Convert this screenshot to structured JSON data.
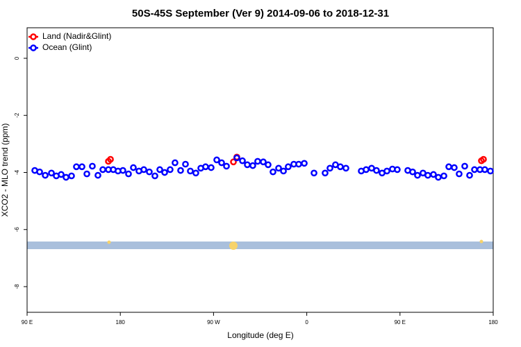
{
  "chart_data": {
    "type": "scatter",
    "title": "50S-45S September (Ver 9)   2014-09-06 to 2018-12-31",
    "x_label": "Longitude (deg E)",
    "y_label": "XCO2 - MLO trend (ppm)",
    "xlim": [
      90,
      540
    ],
    "xticks": [
      {
        "value": 90,
        "label": "90 E"
      },
      180,
      {
        "value": 270,
        "label": "90 W"
      },
      {
        "value": 360,
        "label": "0"
      },
      {
        "value": 450,
        "label": "90 E"
      },
      {
        "value": 540,
        "label": "180"
      }
    ],
    "ylim": [
      -8.9,
      1.07
    ],
    "yticks": [
      0,
      -2,
      -4,
      -6,
      -8
    ],
    "legend": "top-left",
    "series": [
      {
        "name": "Land (Nadir&Glint)",
        "color": "#ff0000",
        "x": [
          168.5,
          170.5,
          289.2,
          292.5,
          528.6,
          530.6
        ],
        "values": [
          -3.61,
          -3.54,
          -3.63,
          -3.46,
          -3.59,
          -3.54
        ]
      },
      {
        "name": "Ocean (Glint)",
        "color": "#0000ff",
        "x": [
          97.4,
          102.1,
          107.5,
          113.5,
          118.2,
          122.9,
          127.6,
          132.9,
          137.6,
          143.0,
          147.7,
          153.0,
          158.4,
          163.1,
          168.5,
          173.2,
          177.8,
          182.5,
          187.9,
          192.6,
          198.0,
          202.7,
          208.0,
          213.4,
          218.1,
          222.8,
          228.1,
          232.8,
          238.2,
          242.9,
          247.6,
          252.9,
          257.7,
          262.3,
          267.7,
          273.1,
          277.8,
          282.5,
          292.5,
          297.9,
          302.6,
          307.9,
          312.6,
          318.0,
          322.7,
          327.4,
          332.8,
          337.5,
          342.1,
          347.5,
          352.2,
          357.6,
          367.0,
          377.7,
          382.4,
          387.7,
          392.4,
          397.8,
          412.6,
          417.3,
          422.6,
          427.3,
          432.7,
          437.4,
          442.7,
          447.4,
          457.5,
          462.2,
          466.9,
          472.2,
          476.9,
          482.3,
          487.0,
          492.4,
          497.1,
          502.4,
          507.1,
          512.5,
          517.2,
          521.9,
          527.2,
          531.9,
          537.3
        ],
        "values": [
          -3.93,
          -3.98,
          -4.1,
          -4.02,
          -4.12,
          -4.07,
          -4.17,
          -4.12,
          -3.8,
          -3.8,
          -4.05,
          -3.78,
          -4.1,
          -3.9,
          -3.9,
          -3.9,
          -3.95,
          -3.93,
          -4.05,
          -3.83,
          -3.95,
          -3.9,
          -3.98,
          -4.12,
          -3.9,
          -4.0,
          -3.9,
          -3.66,
          -3.93,
          -3.71,
          -3.95,
          -4.02,
          -3.85,
          -3.8,
          -3.83,
          -3.56,
          -3.66,
          -3.78,
          -3.49,
          -3.59,
          -3.73,
          -3.76,
          -3.61,
          -3.63,
          -3.73,
          -3.98,
          -3.85,
          -3.95,
          -3.8,
          -3.71,
          -3.71,
          -3.68,
          -4.02,
          -4.02,
          -3.85,
          -3.73,
          -3.8,
          -3.85,
          -3.95,
          -3.9,
          -3.85,
          -3.93,
          -4.02,
          -3.95,
          -3.88,
          -3.9,
          -3.93,
          -3.98,
          -4.1,
          -4.02,
          -4.1,
          -4.07,
          -4.17,
          -4.12,
          -3.8,
          -3.83,
          -4.05,
          -3.78,
          -4.1,
          -3.9,
          -3.9,
          -3.9,
          -3.95
        ]
      }
    ]
  }
}
